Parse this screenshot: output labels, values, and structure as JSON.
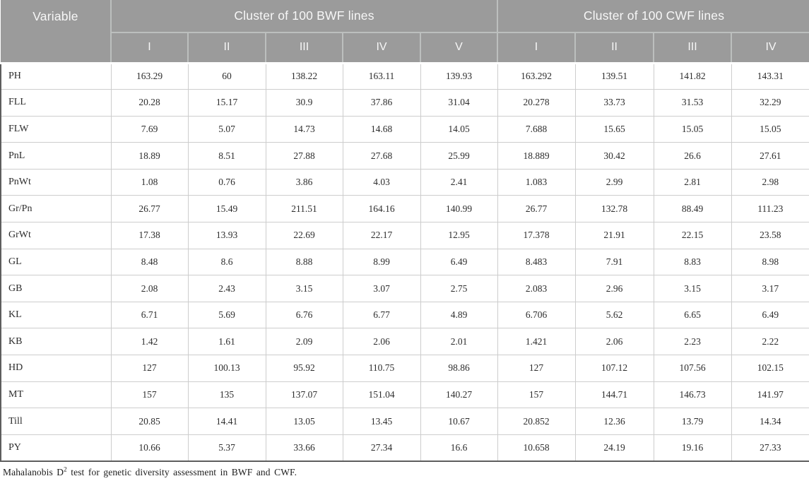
{
  "table": {
    "variable_header": "Variable",
    "groups": [
      {
        "label": "Cluster of 100 BWF lines",
        "subcols": [
          "I",
          "II",
          "III",
          "IV",
          "V"
        ]
      },
      {
        "label": "Cluster of 100 CWF lines",
        "subcols": [
          "I",
          "II",
          "III",
          "IV"
        ]
      }
    ],
    "rows": [
      {
        "variable": "PH",
        "bwf": [
          "163.29",
          "60",
          "138.22",
          "163.11",
          "139.93"
        ],
        "cwf": [
          "163.292",
          "139.51",
          "141.82",
          "143.31"
        ]
      },
      {
        "variable": "FLL",
        "bwf": [
          "20.28",
          "15.17",
          "30.9",
          "37.86",
          "31.04"
        ],
        "cwf": [
          "20.278",
          "33.73",
          "31.53",
          "32.29"
        ]
      },
      {
        "variable": "FLW",
        "bwf": [
          "7.69",
          "5.07",
          "14.73",
          "14.68",
          "14.05"
        ],
        "cwf": [
          "7.688",
          "15.65",
          "15.05",
          "15.05"
        ]
      },
      {
        "variable": "PnL",
        "bwf": [
          "18.89",
          "8.51",
          "27.88",
          "27.68",
          "25.99"
        ],
        "cwf": [
          "18.889",
          "30.42",
          "26.6",
          "27.61"
        ]
      },
      {
        "variable": "PnWt",
        "bwf": [
          "1.08",
          "0.76",
          "3.86",
          "4.03",
          "2.41"
        ],
        "cwf": [
          "1.083",
          "2.99",
          "2.81",
          "2.98"
        ]
      },
      {
        "variable": "Gr/Pn",
        "bwf": [
          "26.77",
          "15.49",
          "211.51",
          "164.16",
          "140.99"
        ],
        "cwf": [
          "26.77",
          "132.78",
          "88.49",
          "111.23"
        ]
      },
      {
        "variable": "GrWt",
        "bwf": [
          "17.38",
          "13.93",
          "22.69",
          "22.17",
          "12.95"
        ],
        "cwf": [
          "17.378",
          "21.91",
          "22.15",
          "23.58"
        ]
      },
      {
        "variable": "GL",
        "bwf": [
          "8.48",
          "8.6",
          "8.88",
          "8.99",
          "6.49"
        ],
        "cwf": [
          "8.483",
          "7.91",
          "8.83",
          "8.98"
        ]
      },
      {
        "variable": "GB",
        "bwf": [
          "2.08",
          "2.43",
          "3.15",
          "3.07",
          "2.75"
        ],
        "cwf": [
          "2.083",
          "2.96",
          "3.15",
          "3.17"
        ]
      },
      {
        "variable": "KL",
        "bwf": [
          "6.71",
          "5.69",
          "6.76",
          "6.77",
          "4.89"
        ],
        "cwf": [
          "6.706",
          "5.62",
          "6.65",
          "6.49"
        ]
      },
      {
        "variable": "KB",
        "bwf": [
          "1.42",
          "1.61",
          "2.09",
          "2.06",
          "2.01"
        ],
        "cwf": [
          "1.421",
          "2.06",
          "2.23",
          "2.22"
        ]
      },
      {
        "variable": "HD",
        "bwf": [
          "127",
          "100.13",
          "95.92",
          "110.75",
          "98.86"
        ],
        "cwf": [
          "127",
          "107.12",
          "107.56",
          "102.15"
        ]
      },
      {
        "variable": "MT",
        "bwf": [
          "157",
          "135",
          "137.07",
          "151.04",
          "140.27"
        ],
        "cwf": [
          "157",
          "144.71",
          "146.73",
          "141.97"
        ]
      },
      {
        "variable": "Till",
        "bwf": [
          "20.85",
          "14.41",
          "13.05",
          "13.45",
          "10.67"
        ],
        "cwf": [
          "20.852",
          "12.36",
          "13.79",
          "14.34"
        ]
      },
      {
        "variable": "PY",
        "bwf": [
          "10.66",
          "5.37",
          "33.66",
          "27.34",
          "16.6"
        ],
        "cwf": [
          "10.658",
          "24.19",
          "19.16",
          "27.33"
        ]
      }
    ]
  },
  "caption": {
    "prefix": "Mahalanobis D",
    "superscript": "2",
    "suffix": " test for genetic diversity assessment in BWF and CWF."
  },
  "colors": {
    "header_bg": "#9b9b9b",
    "header_divider": "#bcbfbe",
    "header_text": "#f7f7f7",
    "inner_border": "#cdcdcd",
    "outer_border": "#5e5e5e",
    "body_text": "#2d2d2d"
  }
}
